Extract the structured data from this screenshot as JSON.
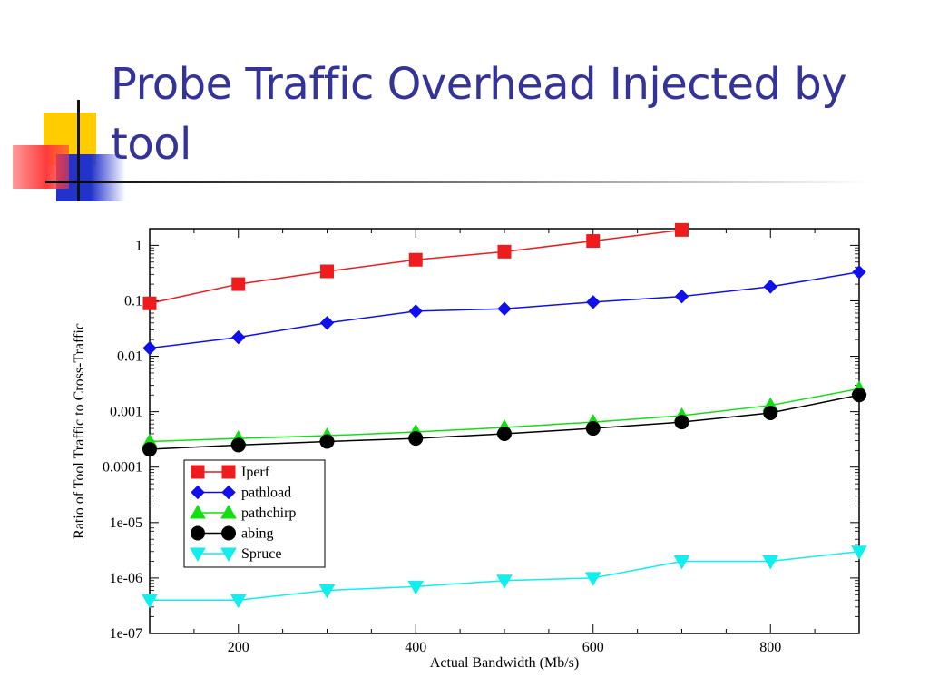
{
  "slide": {
    "title": "Probe Traffic Overhead Injected by tool"
  },
  "colors": {
    "title": "#333399",
    "deco_yellow": "#ffcc00",
    "deco_red": "#ff4444",
    "deco_blue": "#2233cc"
  },
  "chart_data": {
    "type": "line",
    "xlabel": "Actual Bandwidth (Mb/s)",
    "ylabel": "Ratio of Tool Traffic to Cross-Traffic",
    "x_scale": "linear",
    "y_scale": "log",
    "xlim": [
      100,
      900
    ],
    "ylim": [
      1e-07,
      2
    ],
    "x_ticks": [
      200,
      400,
      600,
      800
    ],
    "y_ticks": [
      "1",
      "0.1",
      "0.01",
      "0.001",
      "0.0001",
      "1e-05",
      "1e-06",
      "1e-07"
    ],
    "legend_position": "lower-left",
    "grid": false,
    "series": [
      {
        "name": "Iperf",
        "color": "#ee1c1c",
        "marker": "square",
        "x": [
          100,
          200,
          300,
          400,
          500,
          600,
          700
        ],
        "y": [
          0.09,
          0.2,
          0.34,
          0.55,
          0.77,
          1.2,
          1.9
        ]
      },
      {
        "name": "pathload",
        "color": "#1010ee",
        "marker": "diamond",
        "x": [
          100,
          200,
          300,
          400,
          500,
          600,
          700,
          800,
          900
        ],
        "y": [
          0.014,
          0.022,
          0.04,
          0.065,
          0.072,
          0.095,
          0.12,
          0.18,
          0.33
        ]
      },
      {
        "name": "pathchirp",
        "color": "#10e010",
        "marker": "triangle-up",
        "x": [
          100,
          200,
          300,
          400,
          500,
          600,
          700,
          800,
          900
        ],
        "y": [
          0.00029,
          0.00033,
          0.00037,
          0.00043,
          0.00052,
          0.00065,
          0.00085,
          0.0013,
          0.0026
        ]
      },
      {
        "name": "abing",
        "color": "#000000",
        "marker": "circle",
        "x": [
          100,
          200,
          300,
          400,
          500,
          600,
          700,
          800,
          900
        ],
        "y": [
          0.00021,
          0.00025,
          0.00029,
          0.00033,
          0.0004,
          0.0005,
          0.00065,
          0.00095,
          0.002
        ]
      },
      {
        "name": "Spruce",
        "color": "#10eeee",
        "marker": "triangle-down",
        "x": [
          100,
          200,
          300,
          400,
          500,
          600,
          700,
          800,
          900
        ],
        "y": [
          4e-07,
          4e-07,
          6e-07,
          7e-07,
          9e-07,
          1e-06,
          2e-06,
          2e-06,
          3e-06
        ]
      }
    ]
  }
}
